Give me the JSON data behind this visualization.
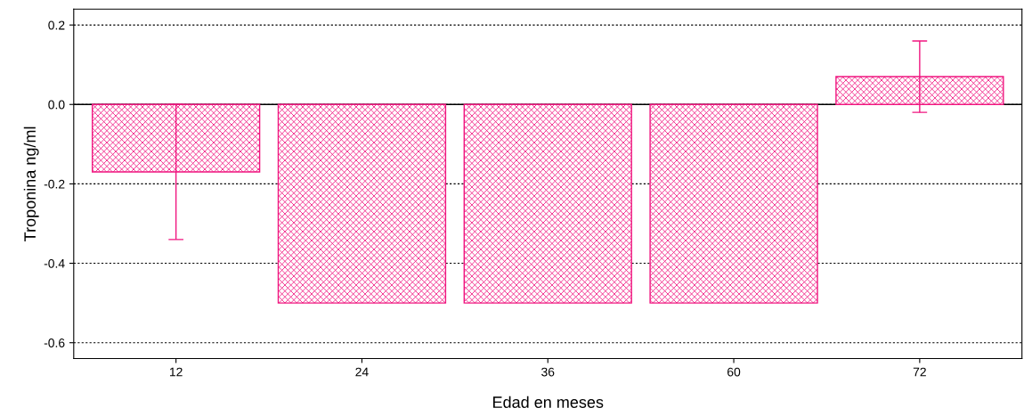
{
  "chart_data": {
    "type": "bar",
    "xlabel": "Edad en meses",
    "ylabel": "Troponina ng/ml",
    "categories": [
      "12",
      "24",
      "36",
      "60",
      "72"
    ],
    "values": [
      -0.17,
      -0.5,
      -0.5,
      -0.5,
      0.07
    ],
    "errors": [
      0.17,
      null,
      null,
      null,
      0.09
    ],
    "color": "#f0157f",
    "ylim": [
      -0.64,
      0.24
    ],
    "yticks": [
      {
        "value": 0.2,
        "label": "0.2"
      },
      {
        "value": 0.0,
        "label": "0.0"
      },
      {
        "value": -0.2,
        "label": "-0.2"
      },
      {
        "value": -0.4,
        "label": "-0.4"
      },
      {
        "value": -0.6,
        "label": "-0.6"
      }
    ],
    "grid": "y"
  }
}
